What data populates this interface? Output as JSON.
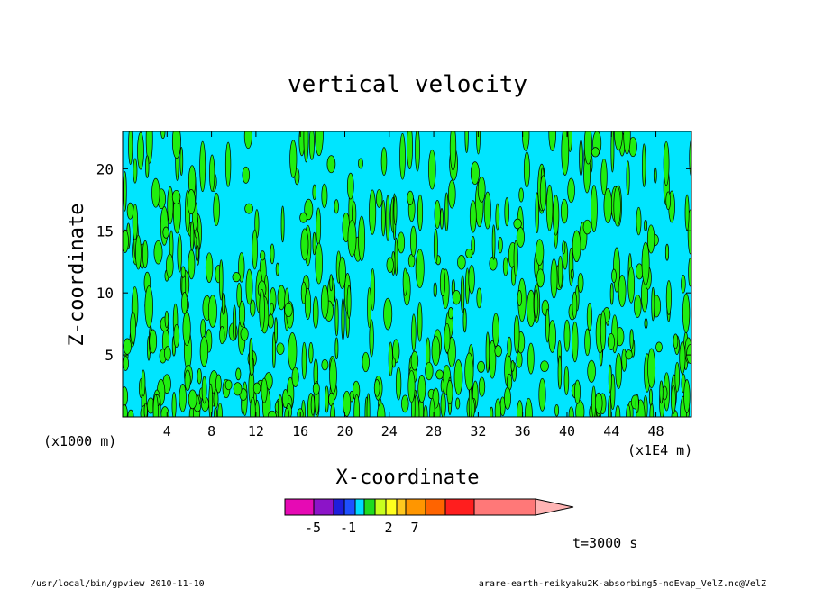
{
  "chart_data": {
    "type": "heatmap",
    "title": "vertical velocity",
    "xlabel": "X-coordinate",
    "ylabel": "Z-coordinate",
    "x_unit_left": "(x1000 m)",
    "x_unit_right": "(x1E4 m)",
    "xticks": [
      "4",
      "8",
      "12",
      "16",
      "20",
      "24",
      "28",
      "32",
      "36",
      "40",
      "44",
      "48"
    ],
    "xtick_values": [
      4,
      8,
      12,
      16,
      20,
      24,
      28,
      32,
      36,
      40,
      44,
      48
    ],
    "yticks": [
      "5",
      "10",
      "15",
      "20"
    ],
    "ytick_values": [
      5,
      10,
      15,
      20
    ],
    "xlim": [
      0,
      51.2
    ],
    "ylim": [
      0,
      23
    ],
    "fill_colors": {
      "negative": "#00e5ff",
      "positive": "#20ee10"
    },
    "colorbar": {
      "colors": [
        "#e60ab4",
        "#8c14c8",
        "#1e1edc",
        "#1e50ff",
        "#00dcff",
        "#1edc1e",
        "#c8ff1e",
        "#ffff1e",
        "#ffc81e",
        "#ff9600",
        "#ff6400",
        "#ff1e1e",
        "#ff7878"
      ],
      "tick_labels": [
        "-5",
        "-1",
        "2",
        "7"
      ],
      "tick_values": [
        -5,
        -1,
        2,
        7
      ]
    },
    "time_label": "t=3000 s"
  },
  "footer": {
    "left": "/usr/local/bin/gpview  2010-11-10",
    "right": "arare-earth-reikyaku2K-absorbing5-noEvap_VelZ.nc@VelZ"
  }
}
